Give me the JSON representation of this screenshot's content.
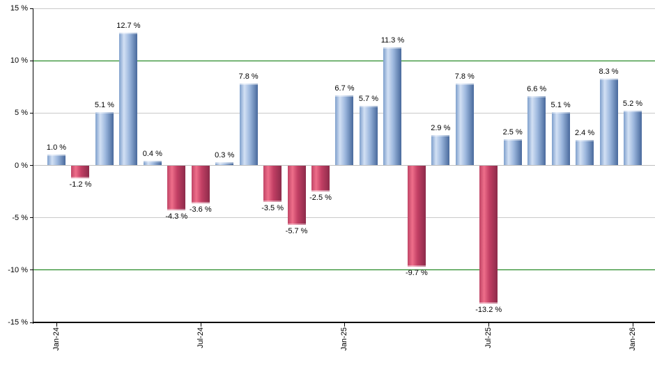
{
  "chart_data": {
    "type": "bar",
    "title": "",
    "xlabel": "",
    "ylabel": "",
    "ylim": [
      -15,
      15
    ],
    "grid": true,
    "legend": null,
    "values": [
      1.0,
      -1.2,
      5.1,
      12.7,
      0.4,
      -4.3,
      -3.6,
      0.3,
      7.8,
      -3.5,
      -5.7,
      -2.5,
      6.7,
      5.7,
      11.3,
      -9.7,
      2.9,
      7.8,
      -13.2,
      2.5,
      6.6,
      5.1,
      2.4,
      8.3,
      5.2
    ],
    "bar_labels": [
      "1.0 %",
      "-1.2 %",
      "5.1 %",
      "12.7 %",
      "0.4 %",
      "-4.3 %",
      "-3.6 %",
      "0.3 %",
      "7.8 %",
      "-3.5 %",
      "-5.7 %",
      "-2.5 %",
      "6.7 %",
      "5.7 %",
      "11.3 %",
      "-9.7 %",
      "2.9 %",
      "7.8 %",
      "-13.2 %",
      "2.5 %",
      "6.6 %",
      "5.1 %",
      "2.4 %",
      "8.3 %",
      "5.2 %"
    ],
    "x_ticks": [
      {
        "index": 0,
        "label": "Jan-24"
      },
      {
        "index": 6,
        "label": "Jul-24"
      },
      {
        "index": 12,
        "label": "Jan-25"
      },
      {
        "index": 18,
        "label": "Jul-25"
      },
      {
        "index": 24,
        "label": "Jan-26"
      }
    ],
    "y_ticks": [
      {
        "value": 15,
        "label": "15 %"
      },
      {
        "value": 10,
        "label": "10 %"
      },
      {
        "value": 5,
        "label": "5 %"
      },
      {
        "value": 0,
        "label": "0 %"
      },
      {
        "value": -5,
        "label": "-5 %"
      },
      {
        "value": -10,
        "label": "-10 %"
      },
      {
        "value": -15,
        "label": "-15 %"
      }
    ],
    "gridlines": [
      {
        "value": 15,
        "color": "#c9c9c9"
      },
      {
        "value": 10,
        "color": "#007500"
      },
      {
        "value": 5,
        "color": "#c9c9c9"
      },
      {
        "value": 0,
        "color": "#bdbdbd"
      },
      {
        "value": -5,
        "color": "#c9c9c9"
      },
      {
        "value": -10,
        "color": "#007500"
      }
    ],
    "colors": {
      "positive_bar_gradient": [
        "#7e9fcc",
        "#d2e0f4",
        "#9db8de",
        "#48699c"
      ],
      "negative_bar_gradient": [
        "#c04566",
        "#ee6e8a",
        "#c23f64",
        "#8c2b4a"
      ],
      "reference_line": "#007500",
      "gridline": "#c9c9c9",
      "axis": "#000000",
      "label_text": "#000000"
    }
  }
}
